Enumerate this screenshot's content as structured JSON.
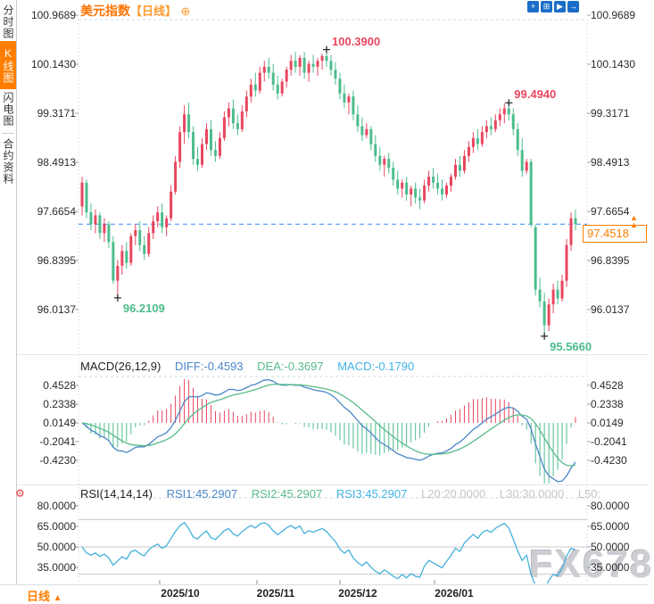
{
  "sidebar": {
    "items": [
      {
        "label": "分时图",
        "active": false
      },
      {
        "label": "K线图",
        "active": true
      },
      {
        "label": "闪电图",
        "active": false
      },
      {
        "label": "合约资料",
        "active": false
      }
    ]
  },
  "header": {
    "title": "美元指数",
    "period_tag": "【日线】",
    "plus_icon": "⊕",
    "toolbar": [
      {
        "name": "crosshair-tool-icon",
        "glyph": "+"
      },
      {
        "name": "axis-scale-icon",
        "glyph": "⊞"
      },
      {
        "name": "zoom-tool-icon",
        "glyph": "▶"
      },
      {
        "name": "export-icon",
        "glyph": "→"
      }
    ]
  },
  "main_chart": {
    "y_axis_labels": [
      "100.9689",
      "100.1430",
      "99.3171",
      "98.4913",
      "97.6654",
      "96.8395",
      "96.0137"
    ],
    "current_price": "97.4518",
    "annotations": {
      "high1": "100.3900",
      "high2": "99.4940",
      "low1": "96.2109",
      "low2": "95.5660"
    }
  },
  "macd_panel": {
    "title": "MACD(26,12,9)",
    "diff": "DIFF:-0.4593",
    "dea": "DEA:-0.3697",
    "macd": "MACD:-0.1790",
    "y_axis_labels": [
      "0.4528",
      "0.2338",
      "0.0149",
      "-0.2041",
      "-0.4230"
    ]
  },
  "rsi_panel": {
    "title": "RSI(14,14,14)",
    "rsi1": "RSI1:45.2907",
    "rsi2": "RSI2:45.2907",
    "rsi3": "RSI3:45.2907",
    "l20": "L20:20.0000",
    "l30": "L30:30.0000",
    "l50": "L50:",
    "y_axis_labels": [
      "80.0000",
      "65.0000",
      "50.0000",
      "35.0000"
    ]
  },
  "footer": {
    "period_label": "日线",
    "arrow": "▲",
    "x_axis_labels": [
      "2025/10",
      "2025/11",
      "2025/12",
      "2026/01"
    ]
  },
  "watermark": "FX678",
  "colors": {
    "up": "#e8465f",
    "down": "#4dbc8d",
    "accent_orange": "#ff7e00",
    "diff_line": "#4a86c8",
    "dea_line": "#57bb8a",
    "rsi_line": "#45b0dc",
    "current_line": "#2e8ef0",
    "grid": "#c9d2dd",
    "level_line": "#c9c9c9"
  },
  "chart_data": [
    {
      "type": "candlestick",
      "title": "美元指数 日线",
      "x_axis": {
        "tick_labels": [
          "2025/10",
          "2025/11",
          "2025/12",
          "2026/01"
        ]
      },
      "y_axis": {
        "tick_values": [
          100.9689,
          100.143,
          99.3171,
          98.4913,
          97.6654,
          96.8395,
          96.0137
        ],
        "min": 95.45,
        "max": 101.05
      },
      "current_price": 97.4518,
      "annotations": [
        {
          "text": "100.3900",
          "price": 100.39,
          "candle": 55,
          "kind": "high"
        },
        {
          "text": "99.4940",
          "price": 99.494,
          "candle": 96,
          "kind": "high"
        },
        {
          "text": "96.2109",
          "price": 96.2109,
          "candle": 8,
          "kind": "low"
        },
        {
          "text": "95.5660",
          "price": 95.566,
          "candle": 104,
          "kind": "low"
        }
      ],
      "candles_ohlc": [
        [
          97.75,
          98.25,
          97.6,
          98.15
        ],
        [
          98.15,
          98.2,
          97.55,
          97.65
        ],
        [
          97.65,
          97.8,
          97.35,
          97.45
        ],
        [
          97.45,
          97.7,
          97.3,
          97.6
        ],
        [
          97.6,
          97.65,
          97.2,
          97.3
        ],
        [
          97.3,
          97.55,
          97.15,
          97.45
        ],
        [
          97.45,
          97.5,
          97.05,
          97.15
        ],
        [
          97.15,
          97.25,
          96.45,
          96.5
        ],
        [
          96.5,
          96.85,
          96.2109,
          96.75
        ],
        [
          96.75,
          97.1,
          96.6,
          97.0
        ],
        [
          97.0,
          97.15,
          96.7,
          96.8
        ],
        [
          96.8,
          97.3,
          96.75,
          97.25
        ],
        [
          97.25,
          97.45,
          97.1,
          97.35
        ],
        [
          97.35,
          97.5,
          97.0,
          97.1
        ],
        [
          97.1,
          97.25,
          96.85,
          96.95
        ],
        [
          96.95,
          97.4,
          96.9,
          97.3
        ],
        [
          97.3,
          97.6,
          97.2,
          97.5
        ],
        [
          97.5,
          97.75,
          97.4,
          97.65
        ],
        [
          97.65,
          97.8,
          97.3,
          97.4
        ],
        [
          97.4,
          97.6,
          97.25,
          97.55
        ],
        [
          97.55,
          98.1,
          97.5,
          98.0
        ],
        [
          98.0,
          98.6,
          97.95,
          98.5
        ],
        [
          98.5,
          99.1,
          98.4,
          99.0
        ],
        [
          99.0,
          99.45,
          98.8,
          99.3
        ],
        [
          99.3,
          99.5,
          98.9,
          99.0
        ],
        [
          99.0,
          99.1,
          98.45,
          98.55
        ],
        [
          98.55,
          98.75,
          98.35,
          98.45
        ],
        [
          98.45,
          98.9,
          98.4,
          98.8
        ],
        [
          98.8,
          99.15,
          98.7,
          99.05
        ],
        [
          99.05,
          99.2,
          98.6,
          98.7
        ],
        [
          98.7,
          98.85,
          98.5,
          98.6
        ],
        [
          98.6,
          99.0,
          98.55,
          98.9
        ],
        [
          98.9,
          99.35,
          98.85,
          99.25
        ],
        [
          99.25,
          99.5,
          99.1,
          99.4
        ],
        [
          99.4,
          99.55,
          99.05,
          99.15
        ],
        [
          99.15,
          99.3,
          98.95,
          99.05
        ],
        [
          99.05,
          99.45,
          99.0,
          99.35
        ],
        [
          99.35,
          99.7,
          99.25,
          99.6
        ],
        [
          99.6,
          99.9,
          99.5,
          99.8
        ],
        [
          99.8,
          100.0,
          99.6,
          99.7
        ],
        [
          99.7,
          100.1,
          99.65,
          100.0
        ],
        [
          100.0,
          100.2,
          99.85,
          100.1
        ],
        [
          100.1,
          100.25,
          99.9,
          100.0
        ],
        [
          100.0,
          100.15,
          99.7,
          99.8
        ],
        [
          99.8,
          99.95,
          99.55,
          99.65
        ],
        [
          99.65,
          99.9,
          99.6,
          99.85
        ],
        [
          99.85,
          100.1,
          99.75,
          100.05
        ],
        [
          100.05,
          100.3,
          99.95,
          100.2
        ],
        [
          100.2,
          100.35,
          100.0,
          100.1
        ],
        [
          100.1,
          100.3,
          99.95,
          100.25
        ],
        [
          100.25,
          100.35,
          99.9,
          100.0
        ],
        [
          100.0,
          100.2,
          99.85,
          100.15
        ],
        [
          100.15,
          100.3,
          100.0,
          100.1
        ],
        [
          100.1,
          100.25,
          99.95,
          100.2
        ],
        [
          100.2,
          100.32,
          100.05,
          100.28
        ],
        [
          100.28,
          100.39,
          100.1,
          100.2
        ],
        [
          100.2,
          100.3,
          99.95,
          100.05
        ],
        [
          100.05,
          100.18,
          99.8,
          99.9
        ],
        [
          99.9,
          100.0,
          99.55,
          99.65
        ],
        [
          99.65,
          99.8,
          99.4,
          99.5
        ],
        [
          99.5,
          99.65,
          99.3,
          99.6
        ],
        [
          99.6,
          99.7,
          99.2,
          99.3
        ],
        [
          99.3,
          99.45,
          99.0,
          99.1
        ],
        [
          99.1,
          99.25,
          98.85,
          98.95
        ],
        [
          98.95,
          99.15,
          98.9,
          99.05
        ],
        [
          99.05,
          99.1,
          98.7,
          98.8
        ],
        [
          98.8,
          98.95,
          98.5,
          98.6
        ],
        [
          98.6,
          98.75,
          98.35,
          98.45
        ],
        [
          98.45,
          98.6,
          98.25,
          98.55
        ],
        [
          98.55,
          98.65,
          98.3,
          98.4
        ],
        [
          98.4,
          98.5,
          98.1,
          98.2
        ],
        [
          98.2,
          98.35,
          97.95,
          98.05
        ],
        [
          98.05,
          98.2,
          97.9,
          98.15
        ],
        [
          98.15,
          98.25,
          97.85,
          97.95
        ],
        [
          97.95,
          98.1,
          97.75,
          98.05
        ],
        [
          98.05,
          98.15,
          97.8,
          97.9
        ],
        [
          97.9,
          98.05,
          97.7,
          97.85
        ],
        [
          97.85,
          98.2,
          97.8,
          98.1
        ],
        [
          98.1,
          98.35,
          98.0,
          98.25
        ],
        [
          98.25,
          98.4,
          98.05,
          98.15
        ],
        [
          98.15,
          98.3,
          97.95,
          98.05
        ],
        [
          98.05,
          98.2,
          97.85,
          97.95
        ],
        [
          97.95,
          98.15,
          97.9,
          98.1
        ],
        [
          98.1,
          98.3,
          98.0,
          98.25
        ],
        [
          98.25,
          98.55,
          98.2,
          98.45
        ],
        [
          98.45,
          98.6,
          98.25,
          98.35
        ],
        [
          98.35,
          98.7,
          98.3,
          98.6
        ],
        [
          98.6,
          98.85,
          98.5,
          98.75
        ],
        [
          98.75,
          99.0,
          98.65,
          98.9
        ],
        [
          98.9,
          99.05,
          98.7,
          98.8
        ],
        [
          98.8,
          99.1,
          98.75,
          99.0
        ],
        [
          99.0,
          99.2,
          98.9,
          99.1
        ],
        [
          99.1,
          99.25,
          98.95,
          99.05
        ],
        [
          99.05,
          99.3,
          99.0,
          99.2
        ],
        [
          99.2,
          99.4,
          99.1,
          99.3
        ],
        [
          99.3,
          99.49,
          99.15,
          99.4
        ],
        [
          99.4,
          99.494,
          99.2,
          99.3
        ],
        [
          99.3,
          99.4,
          98.95,
          99.05
        ],
        [
          99.05,
          99.15,
          98.6,
          98.7
        ],
        [
          98.7,
          98.9,
          98.25,
          98.35
        ],
        [
          98.35,
          98.55,
          98.3,
          98.5
        ],
        [
          98.5,
          98.55,
          97.4,
          97.45
        ],
        [
          97.4,
          97.45,
          96.25,
          96.35
        ],
        [
          96.35,
          96.55,
          96.05,
          96.15
        ],
        [
          96.15,
          96.3,
          95.566,
          95.75
        ],
        [
          95.75,
          96.2,
          95.65,
          96.1
        ],
        [
          96.1,
          96.45,
          95.95,
          96.35
        ],
        [
          96.35,
          96.5,
          96.1,
          96.2
        ],
        [
          96.2,
          96.6,
          96.15,
          96.5
        ],
        [
          96.5,
          97.2,
          96.4,
          97.1
        ],
        [
          97.1,
          97.65,
          97.0,
          97.55
        ],
        [
          97.55,
          97.7,
          97.35,
          97.4518
        ]
      ]
    },
    {
      "type": "bar",
      "name": "MACD",
      "params": [
        26,
        12,
        9
      ],
      "displayed": {
        "diff": -0.4593,
        "dea": -0.3697,
        "macd": -0.179
      },
      "y_axis": {
        "tick_values": [
          0.4528,
          0.2338,
          0.0149,
          -0.2041,
          -0.423
        ]
      },
      "derived_from": "candles_ohlc closes"
    },
    {
      "type": "line",
      "name": "RSI",
      "params": [
        14,
        14,
        14
      ],
      "displayed": {
        "rsi1": 45.2907,
        "rsi2": 45.2907,
        "rsi3": 45.2907
      },
      "levels": [
        20,
        30,
        50,
        70
      ],
      "y_axis": {
        "tick_values": [
          80,
          65,
          50,
          35
        ]
      },
      "derived_from": "candles_ohlc closes"
    }
  ]
}
